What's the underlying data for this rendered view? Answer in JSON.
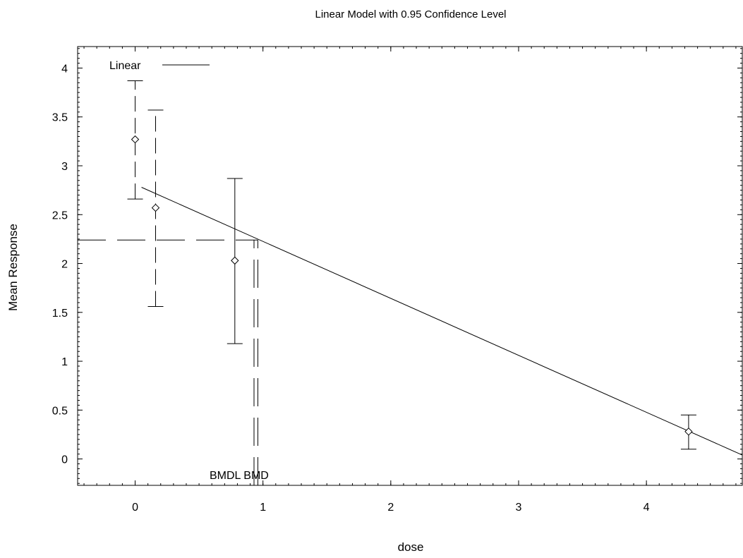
{
  "chart_data": {
    "type": "scatter",
    "title": "Linear Model with 0.95 Confidence Level",
    "xlabel": "dose",
    "ylabel": "Mean Response",
    "xlim": [
      -0.45,
      4.75
    ],
    "ylim": [
      -0.27,
      4.22
    ],
    "x_ticks": [
      0,
      1,
      2,
      3,
      4
    ],
    "y_ticks": [
      0,
      0.5,
      1,
      1.5,
      2,
      2.5,
      3,
      3.5,
      4
    ],
    "x_tick_labels": [
      "0",
      "1",
      "2",
      "3",
      "4"
    ],
    "y_tick_labels": [
      "0",
      "0.5",
      "1",
      "1.5",
      "2",
      "2.5",
      "3",
      "3.5",
      "4"
    ],
    "grid": false,
    "legend": {
      "placement": "top-left",
      "entries": [
        {
          "label": "Linear",
          "style": "solid"
        }
      ]
    },
    "points": [
      {
        "x": 0,
        "y": 3.27,
        "lower": 2.66,
        "upper": 3.87,
        "errorbar_style": "dashed"
      },
      {
        "x": 0.16,
        "y": 2.57,
        "lower": 1.56,
        "upper": 3.57,
        "errorbar_style": "dashed"
      },
      {
        "x": 0.78,
        "y": 2.03,
        "lower": 1.18,
        "upper": 2.87,
        "errorbar_style": "solid"
      },
      {
        "x": 4.33,
        "y": 0.28,
        "lower": 0.1,
        "upper": 0.45,
        "errorbar_style": "solid"
      }
    ],
    "fit_line": {
      "name": "Linear",
      "x": [
        0.05,
        4.75
      ],
      "y": [
        2.78,
        0.04
      ]
    },
    "bmr_response": 2.24,
    "bmd": 0.96,
    "bmdl": 0.93,
    "annotation_text": "BMDL BMD"
  }
}
